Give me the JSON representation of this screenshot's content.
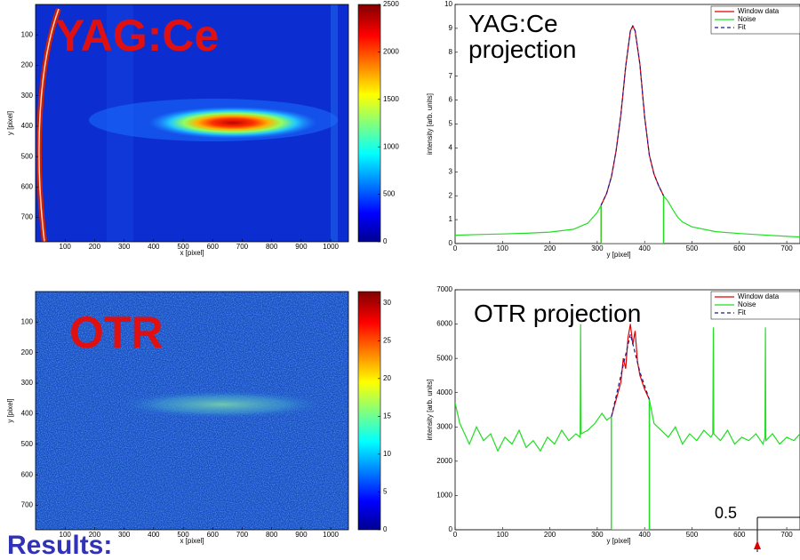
{
  "chart_data": [
    {
      "type": "heatmap",
      "overlay_title": "YAG:Ce",
      "xlabel": "x [pixel]",
      "ylabel": "y [pixel]",
      "xlim": [
        0,
        1060
      ],
      "xticks": [
        100,
        200,
        300,
        400,
        500,
        600,
        700,
        800,
        900,
        1000
      ],
      "ylim": [
        0,
        780
      ],
      "yticks": [
        100,
        200,
        300,
        400,
        500,
        600,
        700
      ],
      "y_reversed": true,
      "colormap": "jet",
      "colorbar": {
        "lim": [
          0,
          2500
        ],
        "ticks": [
          0,
          500,
          1000,
          1500,
          2000,
          2500
        ]
      }
    },
    {
      "type": "line",
      "overlay_title": "YAG:Ce projection",
      "xlabel": "y [pixel]",
      "ylabel": "intensity [arb. units]",
      "xlim": [
        0,
        728
      ],
      "xticks": [
        0,
        100,
        200,
        300,
        400,
        500,
        600,
        700
      ],
      "ylim": [
        0,
        10
      ],
      "yticks": [
        0,
        1,
        2,
        3,
        4,
        5,
        6,
        7,
        8,
        9,
        10
      ],
      "legend": "upper right",
      "series": [
        {
          "name": "Window data",
          "color": "#e00000",
          "linestyle": "solid",
          "x": [
            0,
            308,
            308,
            320,
            330,
            340,
            350,
            360,
            370,
            375,
            380,
            390,
            400,
            410,
            420,
            430,
            440,
            440,
            728
          ],
          "values": [
            0,
            0,
            1.6,
            2.1,
            2.8,
            3.9,
            5.4,
            7.4,
            8.9,
            9.1,
            8.9,
            7.5,
            5.3,
            3.7,
            2.9,
            2.4,
            2.0,
            0,
            0
          ]
        },
        {
          "name": "Noise",
          "color": "#22dd22",
          "linestyle": "solid",
          "x": [
            0,
            50,
            100,
            150,
            200,
            250,
            280,
            300,
            308,
            308,
            440,
            440,
            450,
            460,
            470,
            480,
            500,
            550,
            600,
            650,
            700,
            728
          ],
          "values": [
            0.35,
            0.38,
            0.4,
            0.43,
            0.48,
            0.6,
            0.85,
            1.3,
            1.6,
            0,
            0,
            2.0,
            1.75,
            1.4,
            1.1,
            0.9,
            0.7,
            0.5,
            0.42,
            0.36,
            0.3,
            0.28
          ]
        },
        {
          "name": "Fit",
          "color": "#1a1a8c",
          "linestyle": "dashed",
          "x": [
            308,
            320,
            330,
            340,
            350,
            360,
            370,
            375,
            380,
            390,
            400,
            410,
            420,
            430,
            440
          ],
          "values": [
            1.6,
            2.1,
            2.8,
            3.9,
            5.4,
            7.4,
            8.9,
            9.1,
            8.9,
            7.5,
            5.3,
            3.7,
            2.9,
            2.4,
            2.0
          ]
        }
      ]
    },
    {
      "type": "heatmap",
      "overlay_title": "OTR",
      "xlabel": "x [pixel]",
      "ylabel": "y [pixel]",
      "xlim": [
        0,
        1060
      ],
      "xticks": [
        100,
        200,
        300,
        400,
        500,
        600,
        700,
        800,
        900,
        1000
      ],
      "ylim": [
        0,
        780
      ],
      "yticks": [
        100,
        200,
        300,
        400,
        500,
        600,
        700
      ],
      "y_reversed": true,
      "colormap": "jet",
      "colorbar": {
        "lim": [
          0,
          31.5
        ],
        "ticks": [
          0,
          5,
          10,
          15,
          20,
          25,
          30
        ]
      }
    },
    {
      "type": "line",
      "overlay_title": "OTR projection",
      "xlabel": "y [pixel]",
      "ylabel": "intensity [arb. units]",
      "xlim": [
        0,
        728
      ],
      "xticks": [
        0,
        100,
        200,
        300,
        400,
        500,
        600,
        700
      ],
      "ylim": [
        0,
        7000
      ],
      "yticks": [
        0,
        1000,
        2000,
        3000,
        4000,
        5000,
        6000,
        7000
      ],
      "legend": "upper right",
      "series": [
        {
          "name": "Window data",
          "color": "#e00000",
          "linestyle": "solid",
          "x": [
            0,
            330,
            330,
            340,
            350,
            355,
            360,
            365,
            370,
            375,
            380,
            385,
            390,
            400,
            410,
            410,
            728
          ],
          "values": [
            0,
            0,
            3300,
            3800,
            4300,
            5000,
            4700,
            5600,
            6000,
            5400,
            5800,
            4900,
            4500,
            4100,
            3800,
            0,
            0
          ]
        },
        {
          "name": "Noise",
          "color": "#22dd22",
          "linestyle": "solid",
          "x": [
            0,
            10,
            20,
            30,
            45,
            60,
            75,
            90,
            105,
            120,
            135,
            150,
            165,
            180,
            195,
            210,
            225,
            240,
            255,
            264,
            265,
            266,
            280,
            295,
            310,
            320,
            330,
            330,
            410,
            410,
            420,
            435,
            450,
            465,
            480,
            495,
            510,
            525,
            540,
            544,
            545,
            546,
            560,
            575,
            590,
            605,
            620,
            635,
            650,
            654,
            655,
            656,
            670,
            685,
            700,
            715,
            728
          ],
          "values": [
            3700,
            3100,
            2800,
            2500,
            3000,
            2600,
            2800,
            2300,
            2700,
            2500,
            2900,
            2400,
            2600,
            2300,
            2700,
            2500,
            2900,
            2600,
            2800,
            2700,
            6000,
            2800,
            2900,
            3100,
            3400,
            3200,
            3300,
            0,
            0,
            3800,
            3100,
            2900,
            2700,
            3000,
            2500,
            2800,
            2600,
            2900,
            2700,
            2800,
            5900,
            2800,
            2600,
            2900,
            2500,
            2700,
            2600,
            2800,
            2500,
            2700,
            5900,
            2600,
            2800,
            2500,
            2700,
            2600,
            2800
          ]
        },
        {
          "name": "Fit",
          "color": "#1a1a8c",
          "linestyle": "dashed",
          "x": [
            330,
            350,
            370,
            390,
            410
          ],
          "values": [
            3300,
            4500,
            5700,
            4600,
            3800
          ]
        }
      ]
    }
  ],
  "slide_text": {
    "footer": "Results:",
    "annotation": "0.5"
  }
}
